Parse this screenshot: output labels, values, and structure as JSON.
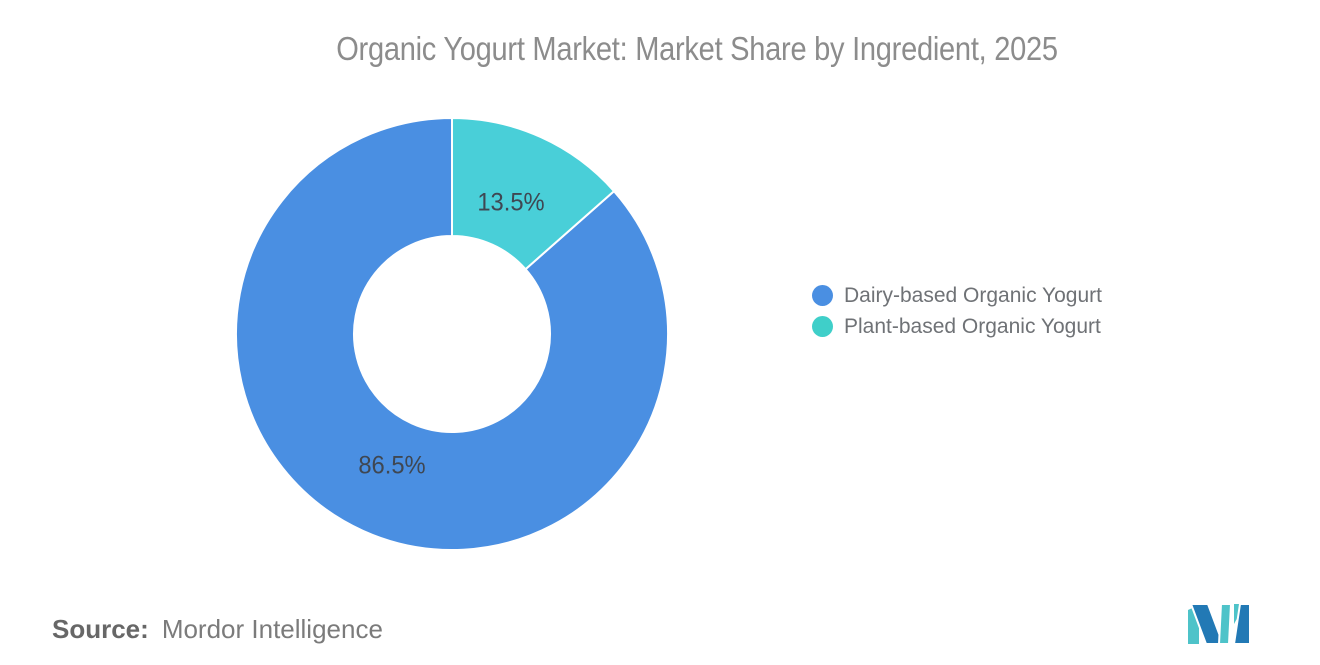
{
  "title": "Organic Yogurt Market: Market Share by Ingredient, 2025",
  "chart_data": {
    "type": "pie",
    "donut": true,
    "title": "Organic Yogurt Market: Market Share by Ingredient, 2025",
    "categories": [
      "Dairy-based Organic Yogurt",
      "Plant-based Organic Yogurt"
    ],
    "values": [
      86.5,
      13.5
    ],
    "unit": "%",
    "colors": [
      "#4A8FE2",
      "#49CFD8"
    ],
    "slice_labels": [
      "86.5%",
      "13.5%"
    ],
    "start_angle_deg": 0,
    "direction": "clockwise",
    "draw_order": [
      1,
      0
    ],
    "inner_radius_ratio": 0.45,
    "legend_position": "right",
    "background": "#FFFFFF",
    "label_color": "#3F4752",
    "title_color": "#8C8C8C"
  },
  "legend": {
    "items": [
      {
        "label": "Dairy-based Organic Yogurt",
        "color": "#4A8FE2"
      },
      {
        "label": "Plant-based Organic Yogurt",
        "color": "#3FCFC9"
      }
    ]
  },
  "source": {
    "label": "Source:",
    "value": "Mordor Intelligence"
  },
  "logo": {
    "name": "mordor-intelligence-logo",
    "teal": "#4EC3C9",
    "blue": "#2279B5"
  }
}
